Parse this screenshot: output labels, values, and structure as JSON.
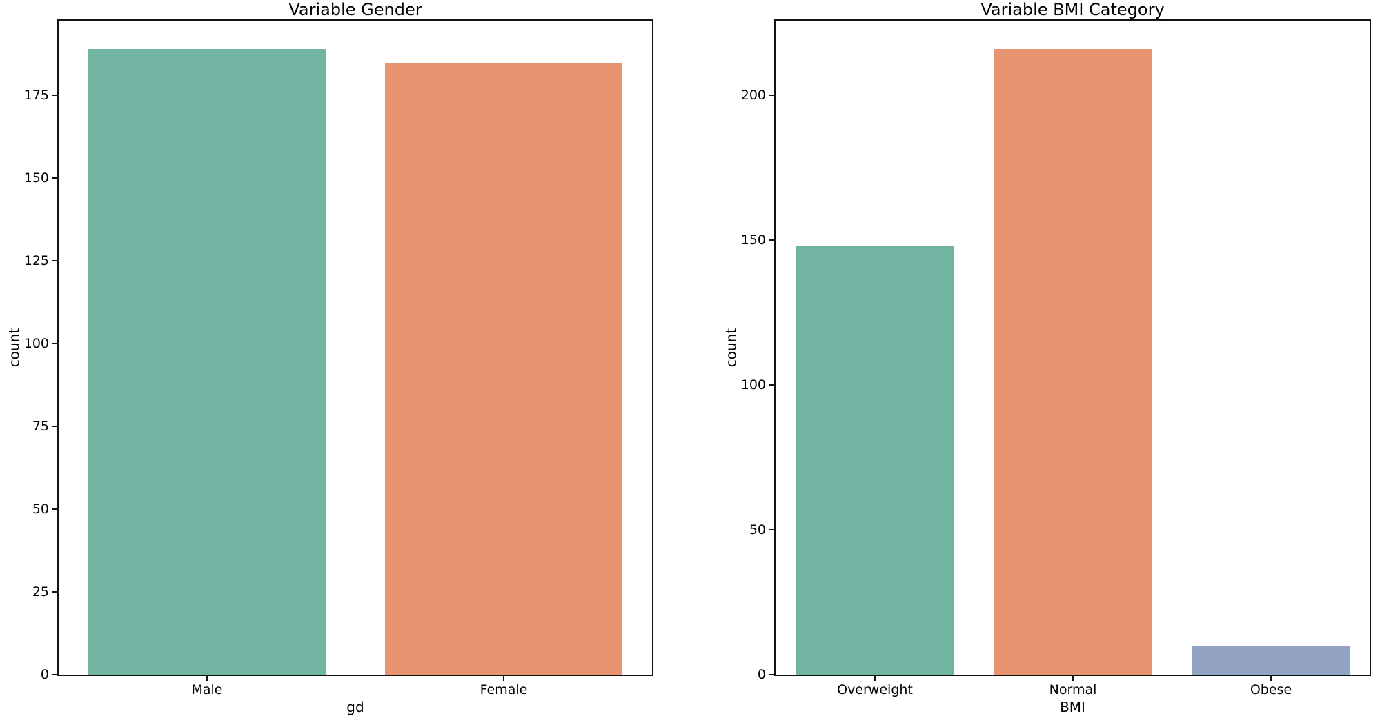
{
  "figure": {
    "background": "#ffffff",
    "text_color": "#000000",
    "spine_color": "#121212"
  },
  "chart_data": [
    {
      "type": "bar",
      "title": "Variable Gender",
      "xlabel": "gd",
      "ylabel": "count",
      "categories": [
        "Male",
        "Female"
      ],
      "values": [
        189,
        185
      ],
      "bar_colors": [
        "#70b4a1",
        "#e99470"
      ],
      "yticks": [
        0,
        25,
        50,
        75,
        100,
        125,
        150,
        175
      ],
      "ylim": [
        0,
        198.45
      ],
      "grid": false,
      "legend": null
    },
    {
      "type": "bar",
      "title": "Variable BMI Category",
      "xlabel": "BMI",
      "ylabel": "count",
      "categories": [
        "Overweight",
        "Normal",
        "Obese"
      ],
      "values": [
        148,
        216,
        10
      ],
      "bar_colors": [
        "#70b4a1",
        "#e99470",
        "#93a3c4"
      ],
      "yticks": [
        0,
        50,
        100,
        150,
        200
      ],
      "ylim": [
        0,
        226.8
      ],
      "grid": false,
      "legend": null
    }
  ]
}
